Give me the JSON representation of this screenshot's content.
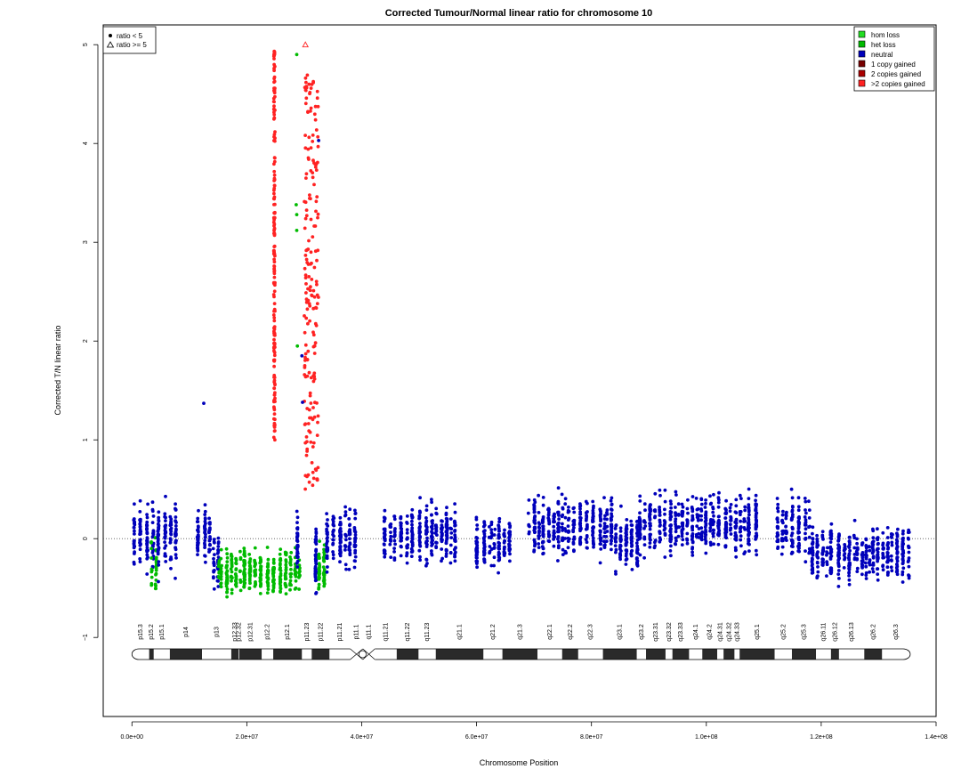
{
  "chart_data": {
    "type": "scatter",
    "title": "Corrected Tumour/Normal linear ratio for chromosome  10",
    "xlabel": "Chromosome Position",
    "ylabel": "Corrected T/N linear ratio",
    "xlim": [
      -5000000,
      140000000
    ],
    "ylim": [
      -1.8,
      5.2
    ],
    "x_ticks": [
      0,
      20000000,
      40000000,
      60000000,
      80000000,
      100000000,
      120000000,
      140000000
    ],
    "x_tick_labels": [
      "0.0e+00",
      "2.0e+07",
      "4.0e+07",
      "6.0e+07",
      "8.0e+07",
      "1.0e+08",
      "1.2e+08",
      "1.4e+08"
    ],
    "y_ticks": [
      -1,
      0,
      1,
      2,
      3,
      4,
      5
    ],
    "y_tick_labels": [
      "−1",
      "0",
      "1",
      "2",
      "3",
      "4",
      "5"
    ],
    "reference_line": 0,
    "legend_shape": {
      "entries": [
        "ratio < 5",
        "ratio >= 5"
      ],
      "position": "top-left"
    },
    "legend_state": {
      "entries": [
        "hom loss",
        "het loss",
        "neutral",
        "1 copy gained",
        "2 copies gained",
        ">2 copies gained"
      ],
      "colors": [
        "#22dd22",
        "#00bb00",
        "#0000bb",
        "#770000",
        "#aa0000",
        "#ff2222"
      ],
      "position": "top-right"
    },
    "segments": [
      {
        "state": "neutral",
        "color": "#0000bb",
        "x_range": [
          0,
          3300000
        ],
        "mean": 0.0,
        "sd": 0.22
      },
      {
        "state": "het loss",
        "color": "#00bb00",
        "x_range": [
          3300000,
          4100000
        ],
        "mean": -0.35,
        "sd": 0.22
      },
      {
        "state": "neutral",
        "color": "#0000bb",
        "x_range": [
          4100000,
          8000000
        ],
        "mean": 0.05,
        "sd": 0.22
      },
      {
        "state": "neutral",
        "color": "#0000bb",
        "x_range": [
          11000000,
          14000000
        ],
        "mean": 0.05,
        "sd": 0.2
      },
      {
        "state": "neutral",
        "color": "#0000bb",
        "x_range": [
          14000000,
          15000000
        ],
        "mean": -0.2,
        "sd": 0.22
      },
      {
        "state": "het loss",
        "color": "#00bb00",
        "x_range": [
          15000000,
          29200000
        ],
        "mean": -0.35,
        "sd": 0.15
      },
      {
        "state": "neutral",
        "color": "#0000bb",
        "x_range": [
          28300000,
          29500000
        ],
        "mean": 0.0,
        "sd": 0.2
      },
      {
        "state": "neutral",
        "color": "#0000bb",
        "x_range": [
          31500000,
          32000000
        ],
        "mean": -0.2,
        "sd": 0.2
      },
      {
        "state": "het loss",
        "color": "#00bb00",
        "x_range": [
          32200000,
          33500000
        ],
        "mean": -0.3,
        "sd": 0.15
      },
      {
        "state": "neutral",
        "color": "#0000bb",
        "x_range": [
          33500000,
          39000000
        ],
        "mean": 0.0,
        "sd": 0.22
      },
      {
        "state": "neutral",
        "color": "#0000bb",
        "x_range": [
          43500000,
          56000000
        ],
        "mean": 0.05,
        "sd": 0.18
      },
      {
        "state": "neutral",
        "color": "#0000bb",
        "x_range": [
          59500000,
          66000000
        ],
        "mean": -0.05,
        "sd": 0.18
      },
      {
        "state": "neutral",
        "color": "#0000bb",
        "x_range": [
          69000000,
          83000000
        ],
        "mean": 0.12,
        "sd": 0.2
      },
      {
        "state": "neutral",
        "color": "#0000bb",
        "x_range": [
          84000000,
          88000000
        ],
        "mean": -0.05,
        "sd": 0.2
      },
      {
        "state": "neutral",
        "color": "#0000bb",
        "x_range": [
          88000000,
          109000000
        ],
        "mean": 0.15,
        "sd": 0.2
      },
      {
        "state": "neutral",
        "color": "#0000bb",
        "x_range": [
          112000000,
          118000000
        ],
        "mean": 0.1,
        "sd": 0.2
      },
      {
        "state": "neutral",
        "color": "#0000bb",
        "x_range": [
          118000000,
          135500000
        ],
        "mean": -0.15,
        "sd": 0.18
      }
    ],
    "gain_clusters": [
      {
        "state": ">2 copies gained",
        "color": "#ff2222",
        "x": 24800000,
        "y_range": [
          0.95,
          4.95
        ],
        "count": 170
      },
      {
        "state": ">2 copies gained",
        "color": "#ff2222",
        "x_range": [
          30000000,
          32500000
        ],
        "y_range": [
          0.5,
          4.7
        ],
        "count": 190
      }
    ],
    "extra_points": [
      {
        "x": 12500000,
        "y": 1.37,
        "color": "#0000bb"
      },
      {
        "x": 32500000,
        "y": 4.03,
        "color": "#0000bb"
      },
      {
        "x": 29600000,
        "y": 1.85,
        "color": "#0000bb"
      },
      {
        "x": 29700000,
        "y": 1.38,
        "color": "#0000bb"
      },
      {
        "x": 28700000,
        "y": 4.9,
        "color": "#00bb00"
      },
      {
        "x": 28600000,
        "y": 3.38,
        "color": "#00bb00"
      },
      {
        "x": 28700000,
        "y": 3.28,
        "color": "#00bb00"
      },
      {
        "x": 28700000,
        "y": 3.12,
        "color": "#00bb00"
      },
      {
        "x": 28800000,
        "y": 1.95,
        "color": "#00bb00"
      }
    ],
    "triangle_points": [
      {
        "x": 30200000,
        "y": 5.0,
        "color": "#ff2222"
      }
    ]
  },
  "ideogram": {
    "bands": [
      {
        "name": "p15.3",
        "start": 0,
        "end": 3000000,
        "stain": "gneg"
      },
      {
        "name": "p15.2",
        "start": 3000000,
        "end": 3800000,
        "stain": "gpos"
      },
      {
        "name": "p15.1",
        "start": 3800000,
        "end": 6600000,
        "stain": "gneg"
      },
      {
        "name": "p14",
        "start": 6600000,
        "end": 12200000,
        "stain": "gpos"
      },
      {
        "name": "p13",
        "start": 12200000,
        "end": 17300000,
        "stain": "gneg"
      },
      {
        "name": "p12.33",
        "start": 17300000,
        "end": 18600000,
        "stain": "gpos"
      },
      {
        "name": "p12.32",
        "start": 18600000,
        "end": 18700000,
        "stain": "gneg"
      },
      {
        "name": "p12.31",
        "start": 18700000,
        "end": 22600000,
        "stain": "gpos"
      },
      {
        "name": "p12.2",
        "start": 22600000,
        "end": 24600000,
        "stain": "gneg"
      },
      {
        "name": "p12.1",
        "start": 24600000,
        "end": 29600000,
        "stain": "gpos"
      },
      {
        "name": "p11.23",
        "start": 29600000,
        "end": 31300000,
        "stain": "gneg"
      },
      {
        "name": "p11.22",
        "start": 31300000,
        "end": 34400000,
        "stain": "gpos"
      },
      {
        "name": "p11.21",
        "start": 34400000,
        "end": 38000000,
        "stain": "gneg"
      },
      {
        "name": "p11.1",
        "start": 38000000,
        "end": 40200000,
        "stain": "stalk"
      },
      {
        "name": "q11.1",
        "start": 40200000,
        "end": 42300000,
        "stain": "stalk"
      },
      {
        "name": "q11.21",
        "start": 42300000,
        "end": 46100000,
        "stain": "gneg"
      },
      {
        "name": "q11.22",
        "start": 46100000,
        "end": 49900000,
        "stain": "gpos"
      },
      {
        "name": "q11.23",
        "start": 49900000,
        "end": 52900000,
        "stain": "gneg"
      },
      {
        "name": "q21.1",
        "start": 52900000,
        "end": 61200000,
        "stain": "gpos"
      },
      {
        "name": "q21.2",
        "start": 61200000,
        "end": 64500000,
        "stain": "gneg"
      },
      {
        "name": "q21.3",
        "start": 64500000,
        "end": 70600000,
        "stain": "gpos"
      },
      {
        "name": "q22.1",
        "start": 70600000,
        "end": 74900000,
        "stain": "gneg"
      },
      {
        "name": "q22.2",
        "start": 74900000,
        "end": 77700000,
        "stain": "gpos"
      },
      {
        "name": "q22.3",
        "start": 77700000,
        "end": 82000000,
        "stain": "gneg"
      },
      {
        "name": "q23.1",
        "start": 82000000,
        "end": 87900000,
        "stain": "gpos"
      },
      {
        "name": "q23.2",
        "start": 87900000,
        "end": 89500000,
        "stain": "gneg"
      },
      {
        "name": "q23.31",
        "start": 89500000,
        "end": 92900000,
        "stain": "gpos"
      },
      {
        "name": "q23.32",
        "start": 92900000,
        "end": 94100000,
        "stain": "gneg"
      },
      {
        "name": "q23.33",
        "start": 94100000,
        "end": 97000000,
        "stain": "gpos"
      },
      {
        "name": "q24.1",
        "start": 97000000,
        "end": 99300000,
        "stain": "gneg"
      },
      {
        "name": "q24.2",
        "start": 99300000,
        "end": 101900000,
        "stain": "gpos"
      },
      {
        "name": "q24.31",
        "start": 101900000,
        "end": 103000000,
        "stain": "gneg"
      },
      {
        "name": "q24.32",
        "start": 103000000,
        "end": 104900000,
        "stain": "gpos"
      },
      {
        "name": "q24.33",
        "start": 104900000,
        "end": 105800000,
        "stain": "gneg"
      },
      {
        "name": "q25.1",
        "start": 105800000,
        "end": 111900000,
        "stain": "gpos"
      },
      {
        "name": "q25.2",
        "start": 111900000,
        "end": 114900000,
        "stain": "gneg"
      },
      {
        "name": "q25.3",
        "start": 114900000,
        "end": 119100000,
        "stain": "gpos"
      },
      {
        "name": "q26.11",
        "start": 119100000,
        "end": 121700000,
        "stain": "gneg"
      },
      {
        "name": "q26.12",
        "start": 121700000,
        "end": 123100000,
        "stain": "gpos"
      },
      {
        "name": "q26.13",
        "start": 123100000,
        "end": 127500000,
        "stain": "gneg"
      },
      {
        "name": "q26.2",
        "start": 127500000,
        "end": 130600000,
        "stain": "gpos"
      },
      {
        "name": "q26.3",
        "start": 130600000,
        "end": 135500000,
        "stain": "gneg"
      }
    ]
  }
}
